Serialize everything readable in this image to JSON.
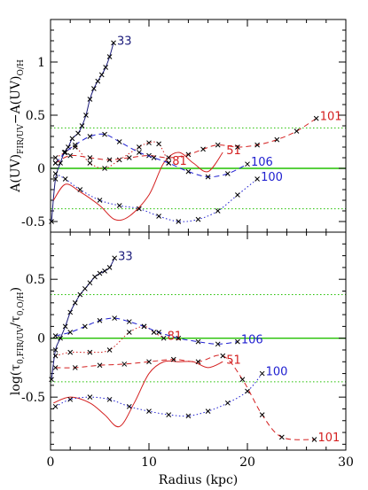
{
  "chart_data": [
    {
      "type": "line",
      "ylabel_main": "A(UV)",
      "ylabel_sub1": "FIR/UV",
      "ylabel_mid": "−A(UV)",
      "ylabel_sub2": "O/H",
      "xlim": [
        0,
        30
      ],
      "ylim": [
        -0.6,
        1.4
      ],
      "xticks": [
        0,
        10,
        20,
        30
      ],
      "yticks": [
        -0.5,
        0,
        0.5,
        1
      ],
      "ytick_labels": [
        "-0.5",
        "0",
        "0.5",
        "1"
      ],
      "reference_lines": [
        {
          "y": 0,
          "style": "solid",
          "color": "#22c000"
        },
        {
          "y": 0.38,
          "style": "dotted",
          "color": "#22c000"
        },
        {
          "y": -0.38,
          "style": "dotted",
          "color": "#22c000"
        }
      ],
      "series": [
        {
          "name": "33",
          "color": "#1a1a7a",
          "dash": "solid",
          "x": [
            0.1,
            0.5,
            1.0,
            1.4,
            1.8,
            2.2,
            2.8,
            3.2,
            3.6,
            4.0,
            4.4,
            4.8,
            5.2,
            5.6,
            6.0,
            6.4
          ],
          "y": [
            -0.5,
            -0.1,
            0.05,
            0.15,
            0.2,
            0.28,
            0.33,
            0.4,
            0.5,
            0.65,
            0.75,
            0.82,
            0.88,
            0.95,
            1.05,
            1.18
          ],
          "markers": true
        },
        {
          "name": "81",
          "color": "#d42020",
          "dash": "dotted",
          "x": [
            0.5,
            1.5,
            2.5,
            4.0,
            5.5,
            7.0,
            9.0,
            10.0,
            11.0,
            12.0
          ],
          "y": [
            0.1,
            0.15,
            0.2,
            0.05,
            0.0,
            0.08,
            0.2,
            0.24,
            0.23,
            0.05
          ],
          "markers": true
        },
        {
          "name": "51",
          "color": "#d42020",
          "dash": "solid",
          "x": [
            0.3,
            1.5,
            3.0,
            5.0,
            6.5,
            8.0,
            10.0,
            11.5,
            13.0,
            14.5,
            16.0,
            17.5
          ],
          "y": [
            -0.3,
            -0.15,
            -0.22,
            -0.35,
            -0.48,
            -0.45,
            -0.25,
            0.05,
            0.15,
            0.05,
            -0.03,
            0.15
          ],
          "markers": false
        },
        {
          "name": "101",
          "color": "#d42020",
          "dash": "dashed",
          "x": [
            0.5,
            2.0,
            4.0,
            6.0,
            8.0,
            10.0,
            12.0,
            14.0,
            15.5,
            17.0,
            19.0,
            21.0,
            23.0,
            25.0,
            27.0
          ],
          "y": [
            0.05,
            0.12,
            0.1,
            0.08,
            0.1,
            0.12,
            0.1,
            0.13,
            0.18,
            0.22,
            0.2,
            0.22,
            0.27,
            0.35,
            0.47
          ],
          "markers": true
        },
        {
          "name": "106",
          "color": "#2020d0",
          "dash": "dashed",
          "x": [
            0.5,
            1.5,
            2.5,
            4.0,
            5.5,
            7.0,
            9.0,
            10.5,
            12.0,
            14.0,
            16.0,
            18.0,
            20.0
          ],
          "y": [
            0.05,
            0.15,
            0.22,
            0.3,
            0.32,
            0.25,
            0.15,
            0.1,
            0.05,
            -0.03,
            -0.08,
            -0.05,
            0.04
          ],
          "markers": true
        },
        {
          "name": "100",
          "color": "#2020d0",
          "dash": "dotted",
          "x": [
            0.5,
            1.5,
            3.0,
            5.0,
            7.0,
            9.0,
            11.0,
            13.0,
            15.0,
            17.0,
            19.0,
            21.0
          ],
          "y": [
            -0.05,
            -0.1,
            -0.2,
            -0.3,
            -0.35,
            -0.38,
            -0.45,
            -0.5,
            -0.48,
            -0.4,
            -0.25,
            -0.1
          ],
          "markers": true
        }
      ]
    },
    {
      "type": "line",
      "ylabel": "log(τ0,FIR/UV/τ0,O/H)",
      "ylabel_main": "log(τ",
      "ylabel_sub1": "0,FIR/UV",
      "ylabel_mid": "/τ",
      "ylabel_sub2": "0,O/H",
      "ylabel_end": ")",
      "xlabel": "Radius (kpc)",
      "xlim": [
        0,
        30
      ],
      "ylim": [
        -0.95,
        0.9
      ],
      "xticks": [
        0,
        10,
        20,
        30
      ],
      "yticks": [
        -0.5,
        0,
        0.5
      ],
      "ytick_labels": [
        "-0.5",
        "0",
        "0.5"
      ],
      "reference_lines": [
        {
          "y": 0,
          "style": "solid",
          "color": "#22c000"
        },
        {
          "y": 0.37,
          "style": "dotted",
          "color": "#22c000"
        },
        {
          "y": -0.37,
          "style": "dotted",
          "color": "#22c000"
        }
      ],
      "series": [
        {
          "name": "33",
          "color": "#1a1a7a",
          "dash": "solid",
          "x": [
            0.1,
            0.5,
            1.0,
            1.5,
            2.0,
            2.5,
            3.0,
            3.5,
            4.0,
            4.5,
            5.0,
            5.5,
            6.0,
            6.5
          ],
          "y": [
            -0.35,
            -0.1,
            0.0,
            0.1,
            0.22,
            0.3,
            0.37,
            0.42,
            0.47,
            0.52,
            0.55,
            0.57,
            0.6,
            0.68
          ],
          "markers": true
        },
        {
          "name": "81",
          "color": "#d42020",
          "dash": "dotted",
          "x": [
            0.5,
            2.0,
            4.0,
            6.0,
            8.0,
            9.5,
            10.5,
            11.5
          ],
          "y": [
            -0.15,
            -0.12,
            -0.12,
            -0.1,
            0.05,
            0.1,
            0.05,
            0.0
          ],
          "markers": true
        },
        {
          "name": "51",
          "color": "#d42020",
          "dash": "solid",
          "x": [
            0.3,
            2.0,
            4.0,
            5.5,
            7.0,
            8.5,
            10.0,
            11.5,
            13.0,
            14.5,
            16.0,
            17.5
          ],
          "y": [
            -0.55,
            -0.5,
            -0.55,
            -0.65,
            -0.75,
            -0.55,
            -0.3,
            -0.2,
            -0.2,
            -0.2,
            -0.25,
            -0.2
          ],
          "markers": false
        },
        {
          "name": "101",
          "color": "#d42020",
          "dash": "dashed",
          "x": [
            0.5,
            2.5,
            5.0,
            7.5,
            10.0,
            12.5,
            15.0,
            17.5,
            19.5,
            21.5,
            23.5,
            26.8
          ],
          "y": [
            -0.25,
            -0.25,
            -0.23,
            -0.22,
            -0.2,
            -0.18,
            -0.2,
            -0.15,
            -0.35,
            -0.65,
            -0.84,
            -0.86
          ],
          "markers": true
        },
        {
          "name": "106",
          "color": "#2020d0",
          "dash": "dashed",
          "x": [
            0.5,
            2.0,
            3.5,
            5.0,
            6.5,
            8.0,
            9.5,
            11.0,
            13.0,
            15.0,
            17.0,
            19.0
          ],
          "y": [
            0.02,
            0.05,
            0.1,
            0.15,
            0.17,
            0.14,
            0.1,
            0.05,
            0.0,
            -0.03,
            -0.05,
            -0.03
          ],
          "markers": true
        },
        {
          "name": "100",
          "color": "#2020d0",
          "dash": "dotted",
          "x": [
            0.5,
            2.0,
            4.0,
            6.0,
            8.0,
            10.0,
            12.0,
            14.0,
            16.0,
            18.0,
            20.0,
            21.5
          ],
          "y": [
            -0.58,
            -0.52,
            -0.5,
            -0.52,
            -0.58,
            -0.62,
            -0.65,
            -0.66,
            -0.62,
            -0.55,
            -0.45,
            -0.3
          ],
          "markers": true
        }
      ]
    }
  ]
}
